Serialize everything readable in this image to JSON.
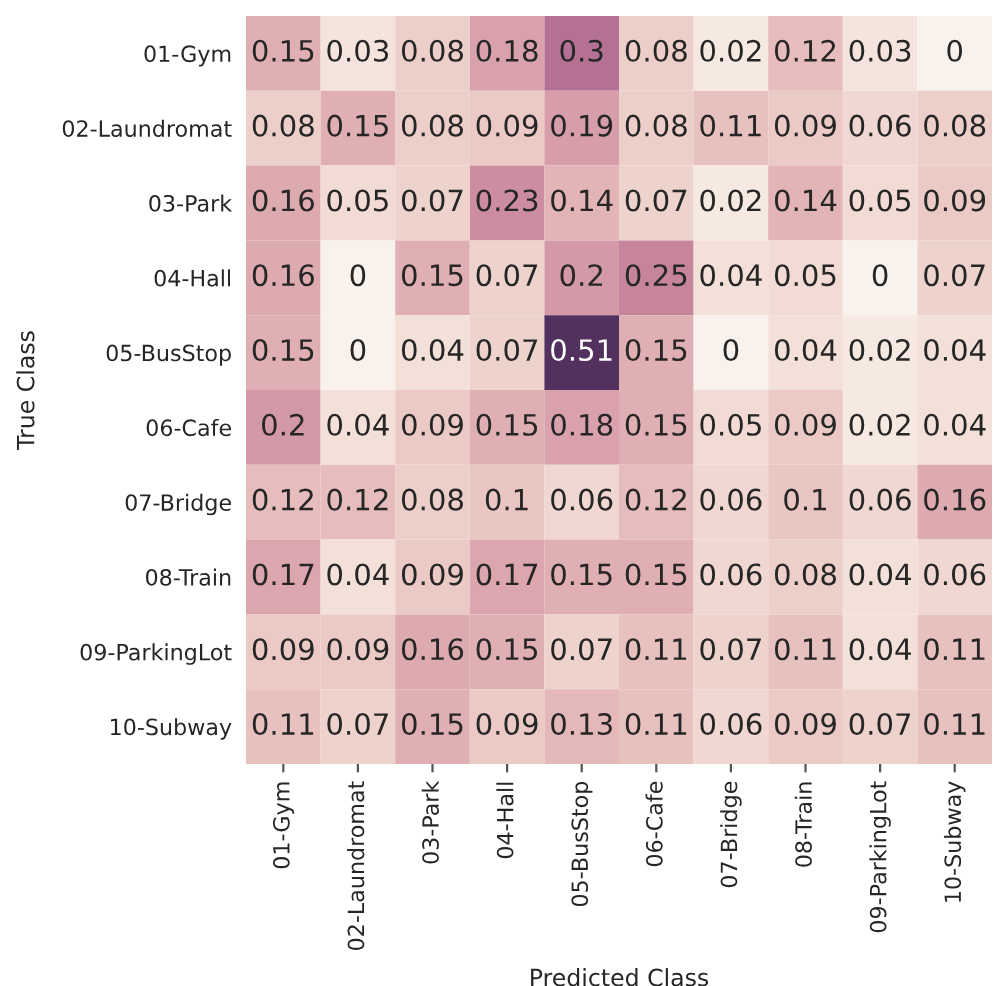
{
  "chart_data": {
    "type": "heatmap",
    "xlabel": "Predicted Class",
    "ylabel": "True Class",
    "categories": [
      "01-Gym",
      "02-Laundromat",
      "03-Park",
      "04-Hall",
      "05-BusStop",
      "06-Cafe",
      "07-Bridge",
      "08-Train",
      "09-ParkingLot",
      "10-Subway"
    ],
    "y_categories": [
      "01-Gym",
      "02-Laundromat",
      "03-Park",
      "04-Hall",
      "05-BusStop",
      "06-Cafe",
      "07-Bridge",
      "08-Train",
      "09-ParkingLot",
      "10-Subway"
    ],
    "cells": [
      [
        0.15,
        0.03,
        0.08,
        0.18,
        0.3,
        0.08,
        0.02,
        0.12,
        0.03,
        0
      ],
      [
        0.08,
        0.15,
        0.08,
        0.09,
        0.19,
        0.08,
        0.11,
        0.09,
        0.06,
        0.08
      ],
      [
        0.16,
        0.05,
        0.07,
        0.23,
        0.14,
        0.07,
        0.02,
        0.14,
        0.05,
        0.09
      ],
      [
        0.16,
        0,
        0.15,
        0.07,
        0.2,
        0.25,
        0.04,
        0.05,
        0,
        0.07
      ],
      [
        0.15,
        0,
        0.04,
        0.07,
        0.51,
        0.15,
        0,
        0.04,
        0.02,
        0.04
      ],
      [
        0.2,
        0.04,
        0.09,
        0.15,
        0.18,
        0.15,
        0.05,
        0.09,
        0.02,
        0.04
      ],
      [
        0.12,
        0.12,
        0.08,
        0.1,
        0.06,
        0.12,
        0.06,
        0.1,
        0.06,
        0.16
      ],
      [
        0.17,
        0.04,
        0.09,
        0.17,
        0.15,
        0.15,
        0.06,
        0.08,
        0.04,
        0.06
      ],
      [
        0.09,
        0.09,
        0.16,
        0.15,
        0.07,
        0.11,
        0.07,
        0.11,
        0.04,
        0.11
      ],
      [
        0.11,
        0.07,
        0.15,
        0.09,
        0.13,
        0.11,
        0.06,
        0.09,
        0.07,
        0.11
      ]
    ],
    "data_labels": true
  }
}
